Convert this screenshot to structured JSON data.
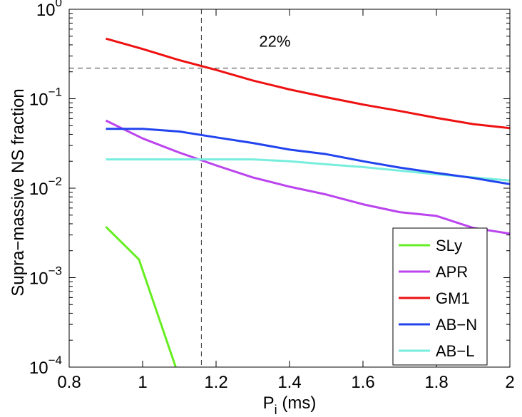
{
  "chart_data": {
    "type": "line",
    "title": "",
    "xlabel": "P",
    "xlabel_subscript": "i",
    "xlabel_unit": "(ms)",
    "ylabel": "Supra−massive NS fraction",
    "xlim": [
      0.8,
      2.0
    ],
    "ylim_log10": [
      -4,
      0
    ],
    "yscale": "log",
    "x_ticks": [
      0.8,
      1.0,
      1.2,
      1.4,
      1.6,
      1.8,
      2.0
    ],
    "x_tick_labels": [
      "0.8",
      "1",
      "1.2",
      "1.4",
      "1.6",
      "1.8",
      "2"
    ],
    "y_ticks": [
      {
        "base": "10",
        "exp": "0"
      },
      {
        "base": "10",
        "exp": "−1"
      },
      {
        "base": "10",
        "exp": "−2"
      },
      {
        "base": "10",
        "exp": "−3"
      },
      {
        "base": "10",
        "exp": "−4"
      }
    ],
    "legend_position": "bottom-right",
    "series": [
      {
        "name": "SLy",
        "color": "#66ee22",
        "x": [
          0.9,
          0.99,
          1.09
        ],
        "y": [
          0.0037,
          0.0016,
          0.0001
        ]
      },
      {
        "name": "APR",
        "color": "#bb44ee",
        "x": [
          0.9,
          1.0,
          1.1,
          1.2,
          1.3,
          1.4,
          1.5,
          1.6,
          1.7,
          1.8,
          1.9,
          2.0
        ],
        "y": [
          0.057,
          0.036,
          0.025,
          0.018,
          0.0132,
          0.0104,
          0.0085,
          0.0066,
          0.0054,
          0.0049,
          0.0036,
          0.0031
        ]
      },
      {
        "name": "GM1",
        "color": "#ee1111",
        "x": [
          0.9,
          1.0,
          1.1,
          1.2,
          1.3,
          1.4,
          1.5,
          1.6,
          1.7,
          1.8,
          1.9,
          2.0
        ],
        "y": [
          0.47,
          0.36,
          0.27,
          0.21,
          0.16,
          0.127,
          0.104,
          0.086,
          0.073,
          0.061,
          0.052,
          0.047
        ]
      },
      {
        "name": "AB−N",
        "color": "#2244ee",
        "x": [
          0.9,
          1.0,
          1.1,
          1.2,
          1.3,
          1.4,
          1.5,
          1.6,
          1.7,
          1.8,
          1.9,
          2.0
        ],
        "y": [
          0.046,
          0.046,
          0.043,
          0.037,
          0.032,
          0.027,
          0.024,
          0.02,
          0.017,
          0.0148,
          0.013,
          0.0111
        ]
      },
      {
        "name": "AB−L",
        "color": "#77eedd",
        "x": [
          0.9,
          1.0,
          1.1,
          1.2,
          1.3,
          1.4,
          1.5,
          1.6,
          1.7,
          1.8,
          1.9,
          2.0
        ],
        "y": [
          0.021,
          0.021,
          0.021,
          0.021,
          0.021,
          0.02,
          0.0185,
          0.0172,
          0.0157,
          0.0143,
          0.0132,
          0.0122
        ]
      }
    ],
    "reference_lines": {
      "vertical_x": 1.16,
      "horizontal_y": 0.22
    },
    "annotations": [
      {
        "text": "22%",
        "x": 1.36,
        "y": 0.38
      }
    ]
  }
}
